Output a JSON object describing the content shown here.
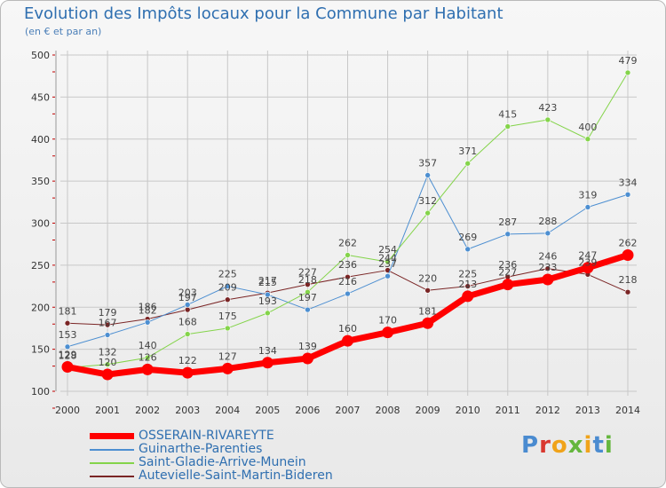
{
  "header": {
    "title": "Evolution des Impôts locaux pour la Commune par Habitant",
    "subtitle": "(en € et par an)"
  },
  "logo": {
    "text": "Proxiti"
  },
  "colors": {
    "osserain": "#ff0000",
    "guinarthe": "#4d8fd1",
    "saint_gladie": "#84d44a",
    "autevielle": "#7a2525",
    "grid": "#c8c8c8",
    "axis_text": "#333333"
  },
  "chart_data": {
    "type": "line",
    "title": "Evolution des Impôts locaux pour la Commune par Habitant",
    "subtitle": "(en € et par an)",
    "x": [
      2000,
      2001,
      2002,
      2003,
      2004,
      2005,
      2006,
      2007,
      2008,
      2009,
      2010,
      2011,
      2012,
      2013,
      2014
    ],
    "ylim": [
      100,
      500
    ],
    "yticks": [
      100,
      150,
      200,
      250,
      300,
      350,
      400,
      450,
      500
    ],
    "grid": true,
    "legend_position": "bottom-left",
    "series": [
      {
        "name": "OSSERAIN-RIVAREYTE",
        "color": "#ff0000",
        "width": 7,
        "values": [
          129,
          120,
          126,
          122,
          127,
          134,
          139,
          160,
          170,
          181,
          213,
          227,
          233,
          247,
          262
        ],
        "labels": [
          "129",
          "120",
          "126",
          "122",
          "127",
          "134",
          "139",
          "160",
          "170",
          "181",
          "213",
          "227",
          "233",
          "247",
          "262"
        ]
      },
      {
        "name": "Guinarthe-Parenties",
        "color": "#4d8fd1",
        "width": 1,
        "values": [
          153,
          167,
          182,
          203,
          225,
          215,
          197,
          216,
          237,
          357,
          269,
          287,
          288,
          319,
          334
        ],
        "labels": [
          "153",
          "167",
          "182",
          "203",
          "225",
          "215",
          "197",
          "216",
          "237",
          "357",
          "269",
          "287",
          "288",
          "319",
          "334"
        ]
      },
      {
        "name": "Saint-Gladie-Arrive-Munein",
        "color": "#84d44a",
        "width": 1,
        "values": [
          128,
          132,
          140,
          168,
          175,
          193,
          218,
          262,
          254,
          312,
          371,
          415,
          423,
          400,
          479
        ],
        "labels": [
          "128",
          "132",
          "140",
          "168",
          "175",
          "193",
          "218",
          "262",
          "254",
          "312",
          "371",
          "415",
          "423",
          "400",
          "479"
        ]
      },
      {
        "name": "Autevielle-Saint-Martin-Bideren",
        "color": "#7a2525",
        "width": 1,
        "values": [
          181,
          179,
          186,
          197,
          209,
          217,
          227,
          236,
          244,
          220,
          225,
          236,
          246,
          239,
          218
        ],
        "labels": [
          "181",
          "179",
          "186",
          "197",
          "209",
          "217",
          "227",
          "236",
          "244",
          "220",
          "225",
          "236",
          "246",
          "239",
          "218"
        ]
      }
    ]
  }
}
